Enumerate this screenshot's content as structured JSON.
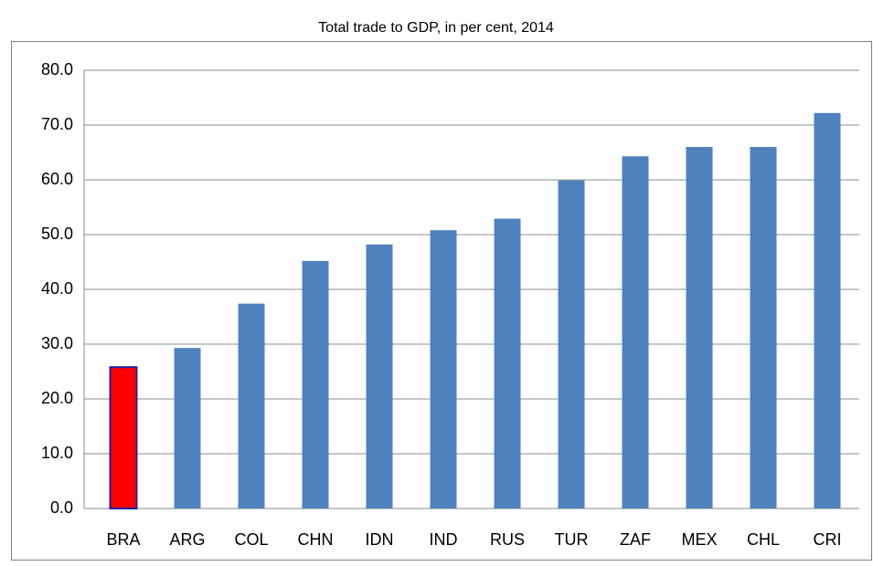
{
  "chart_data": {
    "type": "bar",
    "title": "Total trade to GDP, in per cent, 2014",
    "categories": [
      "BRA",
      "ARG",
      "COL",
      "CHN",
      "IDN",
      "IND",
      "RUS",
      "TUR",
      "ZAF",
      "MEX",
      "CHL",
      "CRI"
    ],
    "values": [
      25.8,
      29.3,
      37.4,
      45.2,
      48.2,
      50.8,
      52.9,
      59.9,
      64.3,
      66.0,
      66.0,
      72.2
    ],
    "colors": [
      "#ff0000",
      "#4f81bd",
      "#4f81bd",
      "#4f81bd",
      "#4f81bd",
      "#4f81bd",
      "#4f81bd",
      "#4f81bd",
      "#4f81bd",
      "#4f81bd",
      "#4f81bd",
      "#4f81bd"
    ],
    "edgecolors": [
      "#1f1fa0",
      null,
      null,
      null,
      null,
      null,
      null,
      null,
      null,
      null,
      null,
      null
    ],
    "ylim": [
      0,
      80
    ],
    "yticks": [
      {
        "value": 0,
        "label": "0.0"
      },
      {
        "value": 10,
        "label": "10.0"
      },
      {
        "value": 20,
        "label": "20.0"
      },
      {
        "value": 30,
        "label": "30.0"
      },
      {
        "value": 40,
        "label": "40.0"
      },
      {
        "value": 50,
        "label": "50.0"
      },
      {
        "value": 60,
        "label": "60.0"
      },
      {
        "value": 70,
        "label": "70.0"
      },
      {
        "value": 80,
        "label": "80.0"
      }
    ],
    "grid": true
  }
}
